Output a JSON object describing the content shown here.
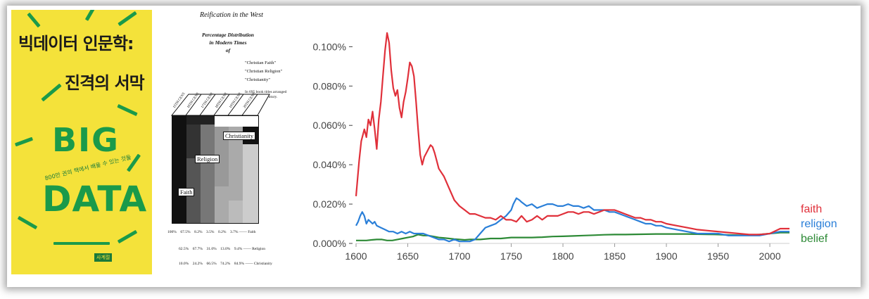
{
  "cover": {
    "title_line1": "빅데이터 인문학:",
    "title_line2": "진격의 서막",
    "big": "BIG",
    "data": "DATA",
    "subtitle": "800만 권의 책에서 배울 수 있는 것들",
    "publisher": "사계절",
    "colors": {
      "background": "#f4e23a",
      "accent": "#1a9a4a"
    }
  },
  "scan": {
    "header": "Reification in the West",
    "caption": [
      "Percentage Distribution",
      "in Modern Times",
      "of"
    ],
    "quotes": [
      "\"Christian Faith\"",
      "\"Christian Religion\"",
      "\"Christianity\""
    ],
    "note": "In 695 book titles arranged according to century.",
    "columns": [
      "15TH CENT.",
      "16TH CENT.",
      "17TH CENT.",
      "18TH CENT.",
      "19TH CENT.",
      "20TH CENT."
    ],
    "labels": {
      "faith": "Faith",
      "religion": "Religion",
      "christianity": "Christianity"
    },
    "rows": [
      {
        "values": [
          "100%",
          "67.5%",
          "8.2%",
          "3.5%",
          "0.2%",
          "3.7%"
        ],
        "label": "Faith"
      },
      {
        "values": [
          "",
          "62.5%",
          "67.7%",
          "31.0%",
          "13.0%",
          "9.4%"
        ],
        "label": "Religion"
      },
      {
        "values": [
          "",
          "10.0%",
          "24.2%",
          "66.5%",
          "74.2%",
          "84.9%"
        ],
        "label": "Christianity"
      }
    ]
  },
  "chart_data": {
    "type": "line",
    "title": "",
    "xlabel": "",
    "ylabel": "",
    "xlim": [
      1600,
      2019
    ],
    "ylim": [
      0,
      0.108
    ],
    "xticks": [
      "1600",
      "1650",
      "1700",
      "1750",
      "1800",
      "1850",
      "1900",
      "1950",
      "2000"
    ],
    "yticks": [
      "0.000%",
      "0.020%",
      "0.040%",
      "0.060%",
      "0.080%",
      "0.100%"
    ],
    "grid": false,
    "legend_placement": "right",
    "series": [
      {
        "name": "faith",
        "color": "#e0303a",
        "x": [
          1600,
          1603,
          1605,
          1608,
          1610,
          1612,
          1614,
          1616,
          1618,
          1620,
          1622,
          1624,
          1626,
          1628,
          1630,
          1632,
          1634,
          1636,
          1638,
          1640,
          1642,
          1644,
          1646,
          1648,
          1650,
          1652,
          1654,
          1656,
          1658,
          1660,
          1662,
          1664,
          1666,
          1668,
          1670,
          1672,
          1674,
          1676,
          1678,
          1680,
          1685,
          1690,
          1695,
          1700,
          1705,
          1710,
          1715,
          1720,
          1725,
          1730,
          1735,
          1740,
          1745,
          1750,
          1755,
          1760,
          1765,
          1770,
          1775,
          1780,
          1785,
          1790,
          1795,
          1800,
          1805,
          1810,
          1815,
          1820,
          1825,
          1830,
          1835,
          1840,
          1845,
          1850,
          1855,
          1860,
          1865,
          1870,
          1875,
          1880,
          1885,
          1890,
          1895,
          1900,
          1910,
          1920,
          1930,
          1940,
          1950,
          1960,
          1970,
          1980,
          1990,
          2000,
          2010,
          2019
        ],
        "values": [
          0.024,
          0.042,
          0.052,
          0.058,
          0.054,
          0.063,
          0.06,
          0.067,
          0.058,
          0.048,
          0.063,
          0.072,
          0.085,
          0.098,
          0.107,
          0.102,
          0.088,
          0.079,
          0.075,
          0.078,
          0.069,
          0.064,
          0.072,
          0.077,
          0.084,
          0.092,
          0.09,
          0.085,
          0.072,
          0.058,
          0.045,
          0.04,
          0.044,
          0.046,
          0.048,
          0.05,
          0.049,
          0.046,
          0.042,
          0.038,
          0.034,
          0.028,
          0.022,
          0.019,
          0.017,
          0.015,
          0.015,
          0.014,
          0.013,
          0.013,
          0.012,
          0.014,
          0.012,
          0.012,
          0.011,
          0.014,
          0.011,
          0.012,
          0.014,
          0.012,
          0.014,
          0.014,
          0.014,
          0.015,
          0.016,
          0.016,
          0.015,
          0.016,
          0.016,
          0.015,
          0.016,
          0.017,
          0.017,
          0.017,
          0.016,
          0.015,
          0.014,
          0.013,
          0.013,
          0.012,
          0.012,
          0.011,
          0.011,
          0.01,
          0.009,
          0.008,
          0.007,
          0.0065,
          0.006,
          0.0055,
          0.005,
          0.0045,
          0.0045,
          0.005,
          0.0075,
          0.0075
        ]
      },
      {
        "name": "religion",
        "color": "#2a7fd8",
        "x": [
          1600,
          1602,
          1604,
          1606,
          1608,
          1610,
          1612,
          1614,
          1616,
          1618,
          1620,
          1624,
          1628,
          1632,
          1636,
          1640,
          1644,
          1648,
          1652,
          1656,
          1660,
          1665,
          1670,
          1675,
          1680,
          1685,
          1690,
          1695,
          1700,
          1705,
          1710,
          1715,
          1720,
          1725,
          1730,
          1735,
          1740,
          1745,
          1750,
          1752,
          1755,
          1758,
          1760,
          1765,
          1770,
          1775,
          1780,
          1785,
          1790,
          1795,
          1800,
          1805,
          1810,
          1815,
          1820,
          1825,
          1830,
          1835,
          1840,
          1845,
          1850,
          1855,
          1860,
          1865,
          1870,
          1875,
          1880,
          1885,
          1890,
          1895,
          1900,
          1910,
          1920,
          1930,
          1940,
          1950,
          1960,
          1970,
          1980,
          1990,
          2000,
          2010,
          2019
        ],
        "values": [
          0.009,
          0.011,
          0.014,
          0.016,
          0.014,
          0.01,
          0.012,
          0.011,
          0.01,
          0.011,
          0.009,
          0.008,
          0.007,
          0.006,
          0.006,
          0.005,
          0.006,
          0.005,
          0.006,
          0.005,
          0.005,
          0.005,
          0.004,
          0.003,
          0.002,
          0.002,
          0.001,
          0.002,
          0.001,
          0.001,
          0.001,
          0.002,
          0.005,
          0.008,
          0.009,
          0.01,
          0.012,
          0.014,
          0.017,
          0.02,
          0.023,
          0.022,
          0.021,
          0.019,
          0.02,
          0.018,
          0.019,
          0.02,
          0.02,
          0.019,
          0.019,
          0.02,
          0.019,
          0.019,
          0.018,
          0.019,
          0.017,
          0.017,
          0.017,
          0.016,
          0.016,
          0.015,
          0.014,
          0.013,
          0.012,
          0.011,
          0.01,
          0.01,
          0.009,
          0.009,
          0.008,
          0.007,
          0.006,
          0.005,
          0.005,
          0.005,
          0.004,
          0.004,
          0.004,
          0.004,
          0.005,
          0.006,
          0.006
        ]
      },
      {
        "name": "belief",
        "color": "#2d8a36",
        "x": [
          1600,
          1605,
          1610,
          1615,
          1620,
          1625,
          1630,
          1635,
          1640,
          1645,
          1650,
          1655,
          1660,
          1665,
          1670,
          1675,
          1680,
          1685,
          1690,
          1695,
          1700,
          1705,
          1710,
          1720,
          1730,
          1740,
          1750,
          1760,
          1770,
          1780,
          1790,
          1800,
          1810,
          1820,
          1830,
          1840,
          1850,
          1860,
          1870,
          1880,
          1890,
          1900,
          1910,
          1920,
          1930,
          1940,
          1950,
          1960,
          1970,
          1980,
          1990,
          2000,
          2010,
          2019
        ],
        "values": [
          0.0015,
          0.0015,
          0.0015,
          0.0018,
          0.002,
          0.002,
          0.0015,
          0.0015,
          0.002,
          0.0025,
          0.003,
          0.0035,
          0.0045,
          0.004,
          0.004,
          0.0035,
          0.003,
          0.0028,
          0.0025,
          0.0022,
          0.002,
          0.0018,
          0.002,
          0.002,
          0.0025,
          0.0025,
          0.003,
          0.003,
          0.003,
          0.0032,
          0.0035,
          0.0036,
          0.0038,
          0.004,
          0.0042,
          0.0044,
          0.0045,
          0.0045,
          0.0046,
          0.0047,
          0.0048,
          0.0048,
          0.0048,
          0.0048,
          0.0047,
          0.0046,
          0.0045,
          0.0043,
          0.0042,
          0.0042,
          0.0045,
          0.005,
          0.0055,
          0.0055
        ]
      }
    ]
  }
}
